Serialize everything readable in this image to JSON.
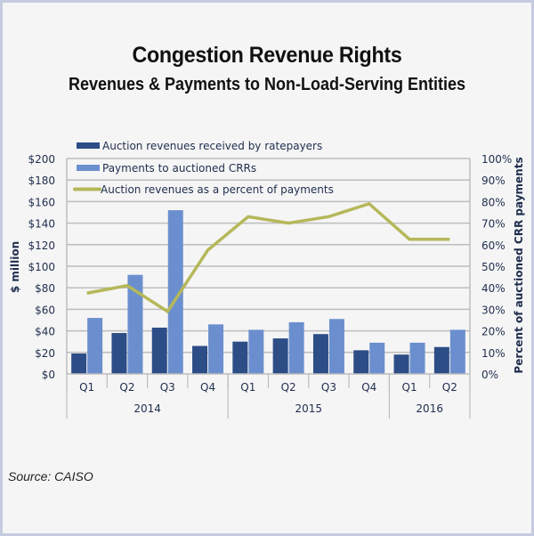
{
  "title": "Congestion Revenue Rights",
  "subtitle": "Revenues & Payments to Non-Load-Serving Entities",
  "source": "Source: CAISO",
  "colors": {
    "auction_revenues": "#2d4d87",
    "payments": "#6b8fce",
    "percent_line": "#b5b85a",
    "grid": "#bdbdbd",
    "text": "#1f2d4d"
  },
  "chart_data": {
    "type": "bar",
    "title": "Congestion Revenue Rights",
    "subtitle": "Revenues & Payments to Non-Load-Serving Entities",
    "categories": [
      "Q1",
      "Q2",
      "Q3",
      "Q4",
      "Q1",
      "Q2",
      "Q3",
      "Q4",
      "Q1",
      "Q2"
    ],
    "years": [
      {
        "label": "2014",
        "span": 4
      },
      {
        "label": "2015",
        "span": 4
      },
      {
        "label": "2016",
        "span": 2
      }
    ],
    "ylabel": "$ million",
    "y2label": "Percent of auctioned CRR payments",
    "ylim": [
      0,
      200
    ],
    "y2lim": [
      0,
      100
    ],
    "yticks": [
      "$0",
      "$20",
      "$40",
      "$60",
      "$80",
      "$100",
      "$120",
      "$140",
      "$160",
      "$180",
      "$200"
    ],
    "y2ticks": [
      "0%",
      "10%",
      "20%",
      "30%",
      "40%",
      "50%",
      "60%",
      "70%",
      "80%",
      "90%",
      "100%"
    ],
    "grid": true,
    "legend_position": "top-left",
    "series": [
      {
        "name": "Auction revenues received by ratepayers",
        "type": "bar",
        "axis": "left",
        "values": [
          19,
          38,
          43,
          26,
          30,
          33,
          37,
          22,
          18,
          25
        ]
      },
      {
        "name": "Payments to auctioned CRRs",
        "type": "bar",
        "axis": "left",
        "values": [
          52,
          92,
          152,
          46,
          41,
          48,
          51,
          29,
          29,
          41
        ]
      },
      {
        "name": "Auction revenues as a percent of payments",
        "type": "line",
        "axis": "right",
        "values": [
          37.5,
          41,
          29,
          57.5,
          73,
          70,
          73,
          79,
          62.5,
          62.5
        ]
      }
    ]
  }
}
